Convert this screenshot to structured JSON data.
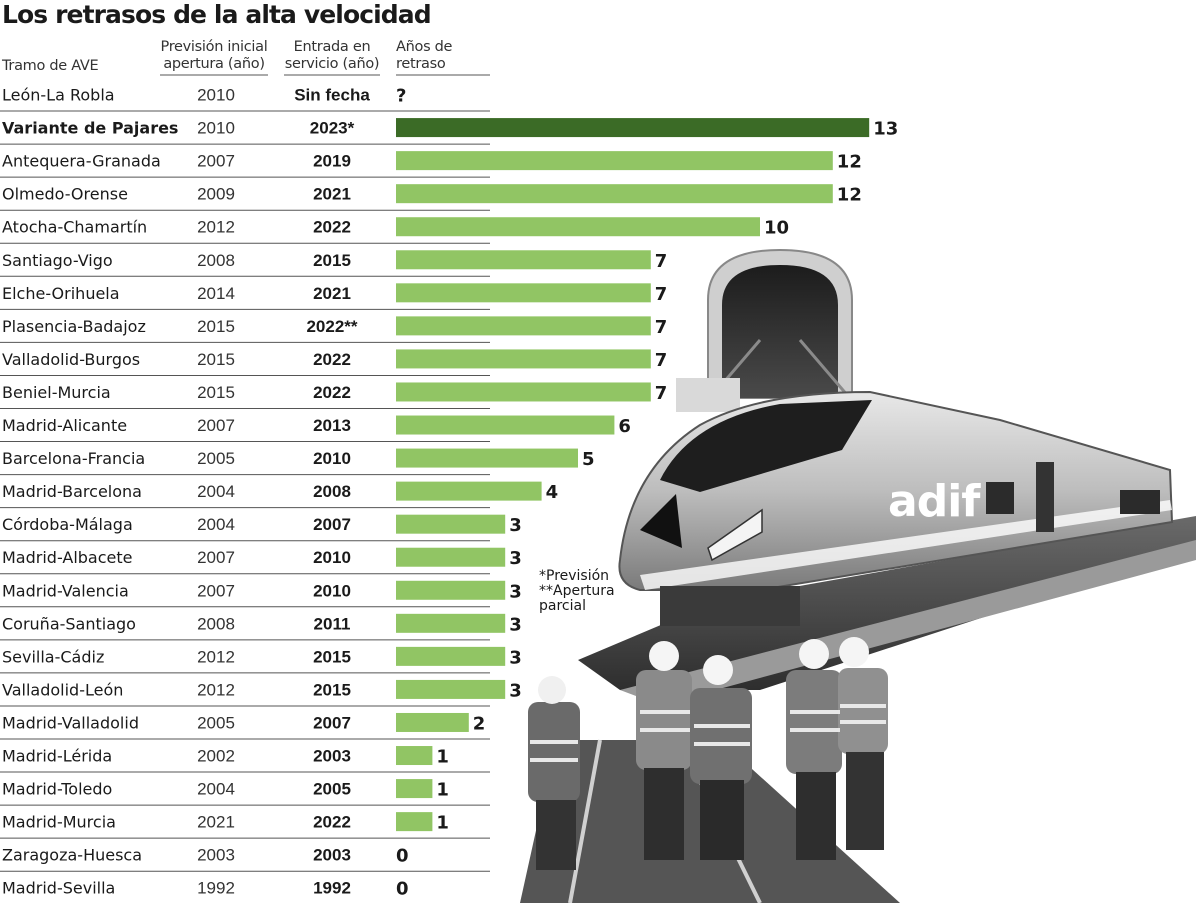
{
  "header": {
    "title": "Los retrasos de la alta velocidad",
    "col_tramo": "Tramo de AVE",
    "col_prevision": "Previsión inicial apertura (año)",
    "col_entrada": "Entrada en servicio (año)",
    "col_anos": "Años de retraso"
  },
  "notes": {
    "note1": "*Previsión",
    "note2": "**Apertura parcial"
  },
  "photo": {
    "logo_text": "adif"
  },
  "colors": {
    "bar": "#91c564",
    "highlight": "#3b6b26",
    "rule": "#555555"
  },
  "chart_data": {
    "type": "bar",
    "orientation": "horizontal",
    "title": "Los retrasos de la alta velocidad",
    "value_label": "Años de retraso",
    "rows": [
      {
        "tramo": "León-La Robla",
        "prevision": "2010",
        "entrada": "Sin fecha",
        "value": null,
        "label": "?",
        "highlight": false
      },
      {
        "tramo": "Variante de Pajares",
        "prevision": "2010",
        "entrada": "2023*",
        "value": 13,
        "label": "13",
        "highlight": true
      },
      {
        "tramo": "Antequera-Granada",
        "prevision": "2007",
        "entrada": "2019",
        "value": 12,
        "label": "12",
        "highlight": false
      },
      {
        "tramo": "Olmedo-Orense",
        "prevision": "2009",
        "entrada": "2021",
        "value": 12,
        "label": "12",
        "highlight": false
      },
      {
        "tramo": "Atocha-Chamartín",
        "prevision": "2012",
        "entrada": "2022",
        "value": 10,
        "label": "10",
        "highlight": false
      },
      {
        "tramo": "Santiago-Vigo",
        "prevision": "2008",
        "entrada": "2015",
        "value": 7,
        "label": "7",
        "highlight": false
      },
      {
        "tramo": "Elche-Orihuela",
        "prevision": "2014",
        "entrada": "2021",
        "value": 7,
        "label": "7",
        "highlight": false
      },
      {
        "tramo": "Plasencia-Badajoz",
        "prevision": "2015",
        "entrada": "2022**",
        "value": 7,
        "label": "7",
        "highlight": false
      },
      {
        "tramo": "Valladolid-Burgos",
        "prevision": "2015",
        "entrada": "2022",
        "value": 7,
        "label": "7",
        "highlight": false
      },
      {
        "tramo": "Beniel-Murcia",
        "prevision": "2015",
        "entrada": "2022",
        "value": 7,
        "label": "7",
        "highlight": false
      },
      {
        "tramo": "Madrid-Alicante",
        "prevision": "2007",
        "entrada": "2013",
        "value": 6,
        "label": "6",
        "highlight": false
      },
      {
        "tramo": "Barcelona-Francia",
        "prevision": "2005",
        "entrada": "2010",
        "value": 5,
        "label": "5",
        "highlight": false
      },
      {
        "tramo": "Madrid-Barcelona",
        "prevision": "2004",
        "entrada": "2008",
        "value": 4,
        "label": "4",
        "highlight": false
      },
      {
        "tramo": "Córdoba-Málaga",
        "prevision": "2004",
        "entrada": "2007",
        "value": 3,
        "label": "3",
        "highlight": false
      },
      {
        "tramo": "Madrid-Albacete",
        "prevision": "2007",
        "entrada": "2010",
        "value": 3,
        "label": "3",
        "highlight": false
      },
      {
        "tramo": "Madrid-Valencia",
        "prevision": "2007",
        "entrada": "2010",
        "value": 3,
        "label": "3",
        "highlight": false
      },
      {
        "tramo": "Coruña-Santiago",
        "prevision": "2008",
        "entrada": "2011",
        "value": 3,
        "label": "3",
        "highlight": false
      },
      {
        "tramo": "Sevilla-Cádiz",
        "prevision": "2012",
        "entrada": "2015",
        "value": 3,
        "label": "3",
        "highlight": false
      },
      {
        "tramo": "Valladolid-León",
        "prevision": "2012",
        "entrada": "2015",
        "value": 3,
        "label": "3",
        "highlight": false
      },
      {
        "tramo": "Madrid-Valladolid",
        "prevision": "2005",
        "entrada": "2007",
        "value": 2,
        "label": "2",
        "highlight": false
      },
      {
        "tramo": "Madrid-Lérida",
        "prevision": "2002",
        "entrada": "2003",
        "value": 1,
        "label": "1",
        "highlight": false
      },
      {
        "tramo": "Madrid-Toledo",
        "prevision": "2004",
        "entrada": "2005",
        "value": 1,
        "label": "1",
        "highlight": false
      },
      {
        "tramo": "Madrid-Murcia",
        "prevision": "2021",
        "entrada": "2022",
        "value": 1,
        "label": "1",
        "highlight": false
      },
      {
        "tramo": "Zaragoza-Huesca",
        "prevision": "2003",
        "entrada": "2003",
        "value": 0,
        "label": "0",
        "highlight": false
      },
      {
        "tramo": "Madrid-Sevilla",
        "prevision": "1992",
        "entrada": "1992",
        "value": 0,
        "label": "0",
        "highlight": false
      }
    ]
  }
}
